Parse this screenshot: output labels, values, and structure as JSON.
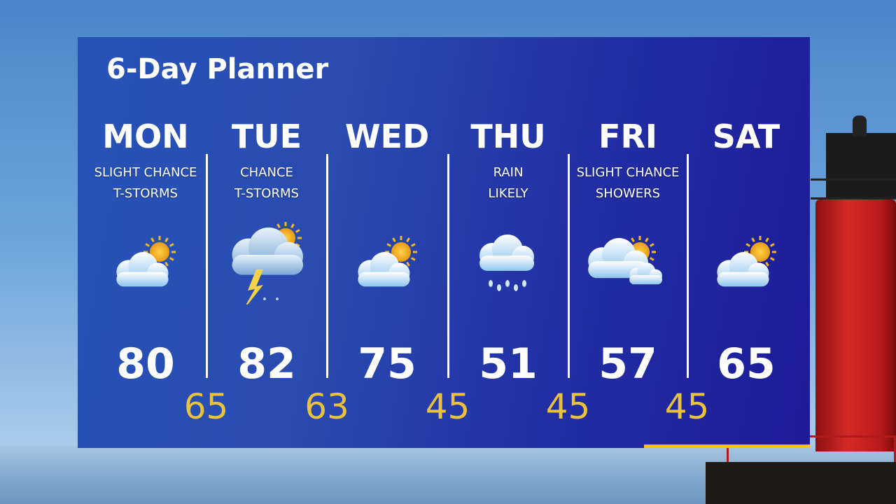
{
  "title": "6-Day Planner",
  "colors": {
    "panel": "#2440ad",
    "low_temp": "#e9c23c",
    "accent_bar": "#f6c400"
  },
  "days": [
    {
      "name": "MON",
      "cond1": "SLIGHT CHANCE",
      "cond2": "T-STORMS",
      "icon": "partly-cloudy-icon",
      "high": "80",
      "low": "65"
    },
    {
      "name": "TUE",
      "cond1": "CHANCE",
      "cond2": "T-STORMS",
      "icon": "thunderstorm-icon",
      "high": "82",
      "low": "63"
    },
    {
      "name": "WED",
      "cond1": "",
      "cond2": "",
      "icon": "partly-cloudy-icon",
      "high": "75",
      "low": "45"
    },
    {
      "name": "THU",
      "cond1": "RAIN",
      "cond2": "LIKELY",
      "icon": "rain-icon",
      "high": "51",
      "low": "45"
    },
    {
      "name": "FRI",
      "cond1": "SLIGHT CHANCE",
      "cond2": "SHOWERS",
      "icon": "partly-cloudy-showers-icon",
      "high": "57",
      "low": "45"
    },
    {
      "name": "SAT",
      "cond1": "",
      "cond2": "",
      "icon": "partly-cloudy-icon",
      "high": "65",
      "low": ""
    }
  ]
}
